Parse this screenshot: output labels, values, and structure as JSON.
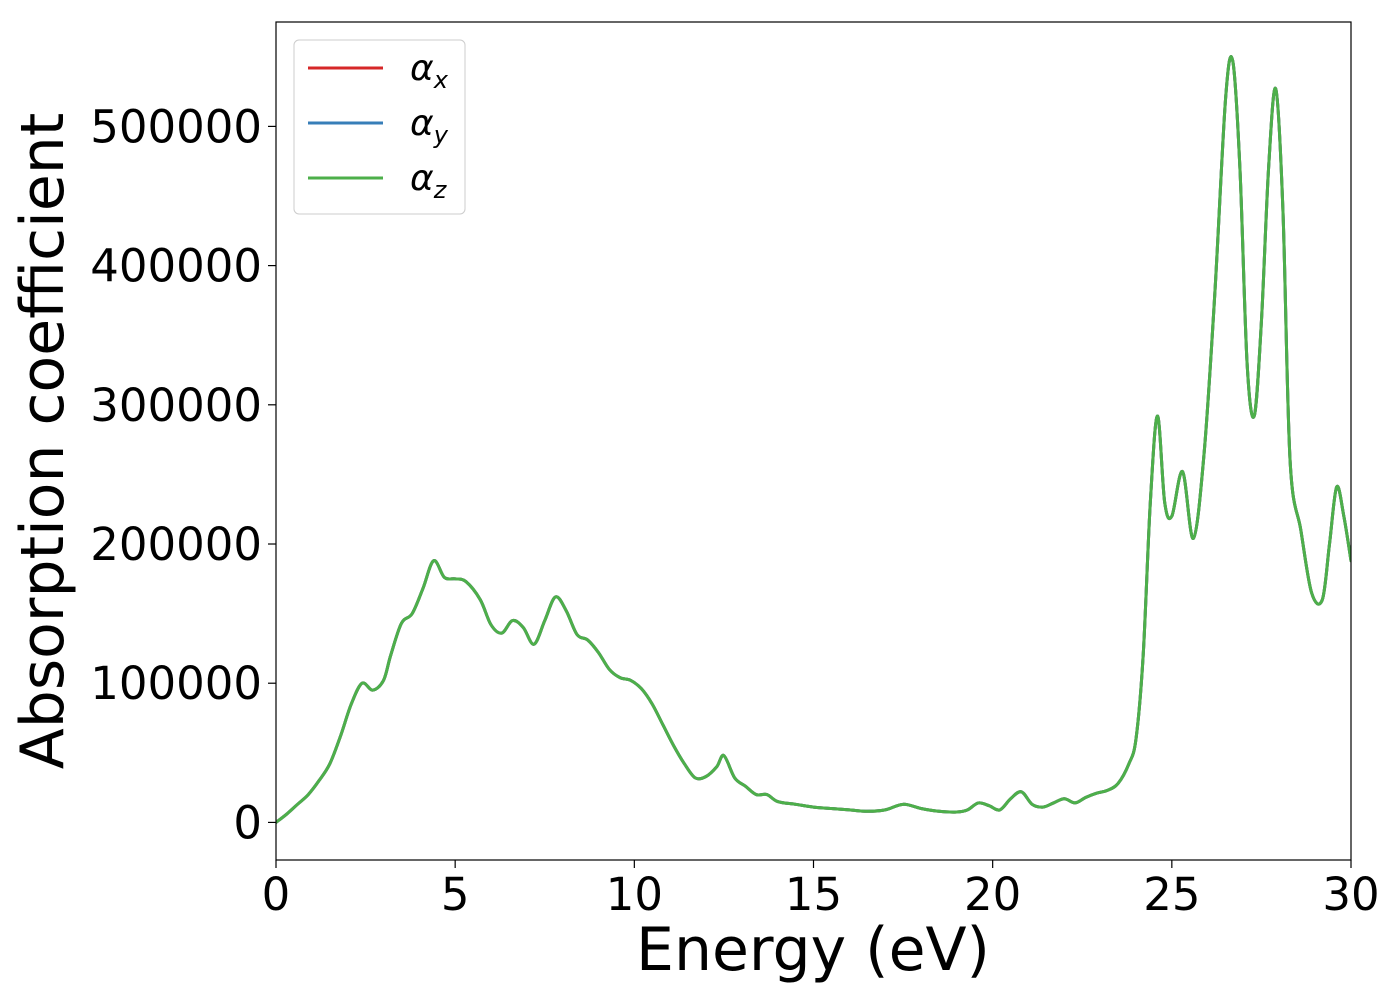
{
  "chart_data": {
    "type": "line",
    "title": "",
    "xlabel": "Energy (eV)",
    "ylabel": "Absorption coefficient",
    "xlim": [
      0,
      30
    ],
    "ylim": [
      -27000,
      575000
    ],
    "xticks": [
      0,
      5,
      10,
      15,
      20,
      25,
      30
    ],
    "xtick_labels": [
      "0",
      "5",
      "10",
      "15",
      "20",
      "25",
      "30"
    ],
    "yticks": [
      0,
      100000,
      200000,
      300000,
      400000,
      500000
    ],
    "ytick_labels": [
      "0",
      "100000",
      "200000",
      "300000",
      "400000",
      "500000"
    ],
    "grid": false,
    "legend_position": "top-left",
    "legend": [
      {
        "symbol": "α",
        "subscript": "x",
        "color": "#d62728"
      },
      {
        "symbol": "α",
        "subscript": "y",
        "color": "#377eb8"
      },
      {
        "symbol": "α",
        "subscript": "z",
        "color": "#4daf4a"
      }
    ],
    "x": [
      0,
      0.3,
      0.6,
      0.9,
      1.2,
      1.5,
      1.8,
      2.1,
      2.4,
      2.7,
      3.0,
      3.2,
      3.5,
      3.8,
      4.1,
      4.4,
      4.7,
      5.0,
      5.3,
      5.7,
      6.0,
      6.3,
      6.6,
      6.9,
      7.2,
      7.5,
      7.8,
      8.1,
      8.4,
      8.7,
      9.0,
      9.3,
      9.6,
      9.9,
      10.2,
      10.5,
      10.8,
      11.1,
      11.4,
      11.7,
      12.0,
      12.3,
      12.5,
      12.8,
      13.1,
      13.4,
      13.7,
      14.0,
      14.5,
      15.0,
      15.5,
      16.0,
      16.5,
      17.0,
      17.5,
      18.0,
      18.5,
      19.0,
      19.3,
      19.6,
      19.9,
      20.2,
      20.5,
      20.8,
      21.1,
      21.4,
      21.7,
      22.0,
      22.3,
      22.6,
      22.9,
      23.2,
      23.5,
      23.8,
      24.0,
      24.2,
      24.4,
      24.6,
      24.8,
      25.0,
      25.3,
      25.6,
      25.9,
      26.2,
      26.5,
      26.7,
      26.9,
      27.1,
      27.3,
      27.5,
      27.7,
      27.9,
      28.1,
      28.3,
      28.6,
      28.9,
      29.2,
      29.4,
      29.6,
      29.8,
      30.0
    ],
    "series": [
      {
        "name": "α_x",
        "color": "#d62728",
        "values": [
          0,
          6000,
          13000,
          20000,
          30000,
          42000,
          62000,
          85000,
          100000,
          95000,
          102000,
          120000,
          143000,
          150000,
          168000,
          188000,
          176000,
          175000,
          173000,
          160000,
          142000,
          136000,
          145000,
          140000,
          128000,
          145000,
          162000,
          152000,
          135000,
          131000,
          122000,
          110000,
          104000,
          102000,
          96000,
          85000,
          70000,
          55000,
          42000,
          32000,
          33000,
          40000,
          48000,
          32000,
          26000,
          20000,
          20000,
          15000,
          13000,
          11000,
          10000,
          9000,
          8000,
          9000,
          13000,
          10000,
          8000,
          7500,
          9000,
          14000,
          12000,
          9000,
          17000,
          22000,
          13000,
          11000,
          14000,
          17000,
          14000,
          18000,
          21000,
          23000,
          28000,
          42000,
          60000,
          120000,
          230000,
          292000,
          230000,
          220000,
          252000,
          204000,
          265000,
          380000,
          520000,
          547000,
          470000,
          330000,
          292000,
          360000,
          470000,
          527000,
          440000,
          260000,
          210000,
          165000,
          160000,
          200000,
          241000,
          220000,
          188000
        ]
      },
      {
        "name": "α_y",
        "color": "#377eb8",
        "values": [
          0,
          6000,
          13000,
          20000,
          30000,
          42000,
          62000,
          85000,
          100000,
          95000,
          102000,
          120000,
          143000,
          150000,
          168000,
          188000,
          176000,
          175000,
          173000,
          160000,
          142000,
          136000,
          145000,
          140000,
          128000,
          145000,
          162000,
          152000,
          135000,
          131000,
          122000,
          110000,
          104000,
          102000,
          96000,
          85000,
          70000,
          55000,
          42000,
          32000,
          33000,
          40000,
          48000,
          32000,
          26000,
          20000,
          20000,
          15000,
          13000,
          11000,
          10000,
          9000,
          8000,
          9000,
          13000,
          10000,
          8000,
          7500,
          9000,
          14000,
          12000,
          9000,
          17000,
          22000,
          13000,
          11000,
          14000,
          17000,
          14000,
          18000,
          21000,
          23000,
          28000,
          42000,
          60000,
          120000,
          230000,
          292000,
          230000,
          220000,
          252000,
          204000,
          265000,
          380000,
          520000,
          547000,
          470000,
          330000,
          292000,
          360000,
          470000,
          527000,
          440000,
          260000,
          210000,
          165000,
          160000,
          200000,
          241000,
          220000,
          188000
        ]
      },
      {
        "name": "α_z",
        "color": "#4daf4a",
        "values": [
          0,
          6000,
          13000,
          20000,
          30000,
          42000,
          62000,
          85000,
          100000,
          95000,
          102000,
          120000,
          143000,
          150000,
          168000,
          188000,
          176000,
          175000,
          173000,
          160000,
          142000,
          136000,
          145000,
          140000,
          128000,
          145000,
          162000,
          152000,
          135000,
          131000,
          122000,
          110000,
          104000,
          102000,
          96000,
          85000,
          70000,
          55000,
          42000,
          32000,
          33000,
          40000,
          48000,
          32000,
          26000,
          20000,
          20000,
          15000,
          13000,
          11000,
          10000,
          9000,
          8000,
          9000,
          13000,
          10000,
          8000,
          7500,
          9000,
          14000,
          12000,
          9000,
          17000,
          22000,
          13000,
          11000,
          14000,
          17000,
          14000,
          18000,
          21000,
          23000,
          28000,
          42000,
          60000,
          120000,
          230000,
          292000,
          230000,
          220000,
          252000,
          204000,
          265000,
          380000,
          520000,
          547000,
          470000,
          330000,
          292000,
          360000,
          470000,
          527000,
          440000,
          260000,
          210000,
          165000,
          160000,
          200000,
          241000,
          220000,
          188000
        ]
      }
    ]
  }
}
